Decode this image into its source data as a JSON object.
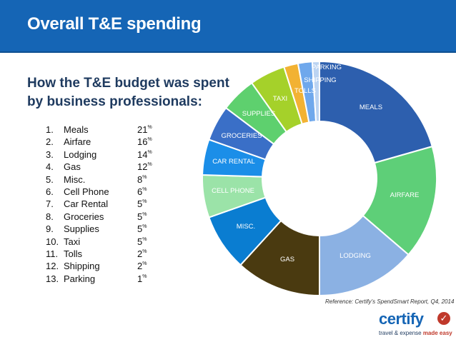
{
  "header": {
    "title": "Overall T&E spending"
  },
  "subtitle_line1": "How the T&E budget was spent",
  "subtitle_line2": "by business professionals:",
  "chart_data": {
    "type": "pie",
    "title": "",
    "series": [
      {
        "label": "MEALS",
        "value": 21,
        "color": "#2d5fae"
      },
      {
        "label": "AIRFARE",
        "value": 16,
        "color": "#5ecf78"
      },
      {
        "label": "LODGING",
        "value": 14,
        "color": "#8bb1e3"
      },
      {
        "label": "GAS",
        "value": 12,
        "color": "#4a3a10"
      },
      {
        "label": "MISC.",
        "value": 8,
        "color": "#0a7dd1"
      },
      {
        "label": "CELL PHONE",
        "value": 6,
        "color": "#9be3a8"
      },
      {
        "label": "CAR RENTAL",
        "value": 5,
        "color": "#1b8ee8"
      },
      {
        "label": "GROCERIES",
        "value": 5,
        "color": "#3a6fc7"
      },
      {
        "label": "SUPPLIES",
        "value": 5,
        "color": "#5ed06e"
      },
      {
        "label": "TAXI",
        "value": 5,
        "color": "#a5d12a"
      },
      {
        "label": "TOLLS",
        "value": 2,
        "color": "#f2b233"
      },
      {
        "label": "SHIPPING",
        "value": 2,
        "color": "#6fa8ec"
      },
      {
        "label": "PARKING",
        "value": 1,
        "color": "#bcd4f2"
      }
    ]
  },
  "list": [
    {
      "num": "1.",
      "name": "Meals",
      "pct": "21",
      "unit": "%"
    },
    {
      "num": "2.",
      "name": "Airfare",
      "pct": "16",
      "unit": "%"
    },
    {
      "num": "3.",
      "name": "Lodging",
      "pct": "14",
      "unit": "%"
    },
    {
      "num": "4.",
      "name": "Gas",
      "pct": "12",
      "unit": "%"
    },
    {
      "num": "5.",
      "name": "Misc.",
      "pct": "8",
      "unit": "%"
    },
    {
      "num": "6.",
      "name": "Cell Phone",
      "pct": "6",
      "unit": "%"
    },
    {
      "num": "7.",
      "name": "Car Rental",
      "pct": "5",
      "unit": "%"
    },
    {
      "num": "8.",
      "name": "Groceries",
      "pct": "5",
      "unit": "%"
    },
    {
      "num": "9.",
      "name": "Supplies",
      "pct": "5",
      "unit": "%"
    },
    {
      "num": "10.",
      "name": "Taxi",
      "pct": "5",
      "unit": "%"
    },
    {
      "num": "11.",
      "name": "Tolls",
      "pct": "2",
      "unit": "%"
    },
    {
      "num": "12.",
      "name": "Shipping",
      "pct": "2",
      "unit": "%"
    },
    {
      "num": "13.",
      "name": "Parking",
      "pct": "1",
      "unit": "%"
    }
  ],
  "reference": "Reference: Certify’s SpendSmart Report, Q4, 2014",
  "logo": {
    "word": "certify",
    "tagline_a": "travel & expense ",
    "tagline_b": "made easy"
  }
}
